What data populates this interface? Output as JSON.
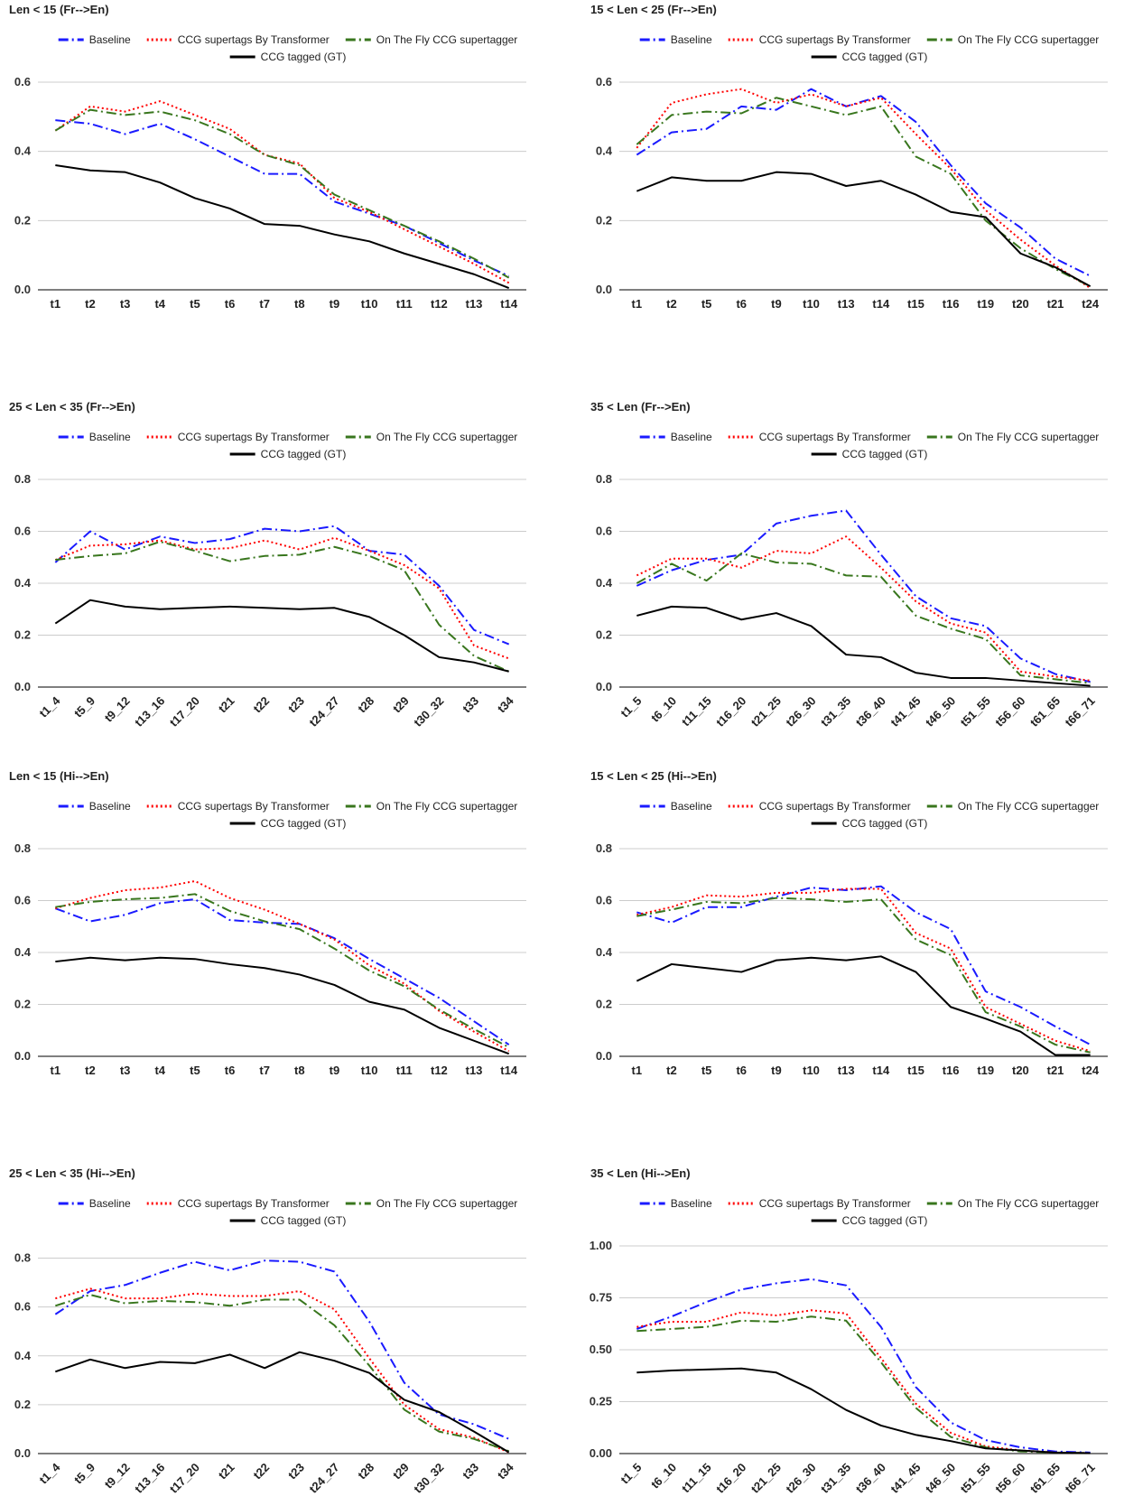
{
  "chart_data": [
    {
      "type": "line",
      "title": "Len < 15 (Fr-->En)",
      "categories": [
        "t1",
        "t2",
        "t3",
        "t4",
        "t5",
        "t6",
        "t7",
        "t8",
        "t9",
        "t10",
        "t11",
        "t12",
        "t13",
        "t14"
      ],
      "ylim": [
        0,
        0.6
      ],
      "yticks": [
        {
          "value": 0,
          "label": "0.0"
        },
        0.2,
        0.4,
        0.6
      ],
      "grid": true,
      "series": [
        {
          "name": "Baseline",
          "color": "#1a1aff",
          "dash": "dashdot",
          "values": [
            0.49,
            0.48,
            0.45,
            0.48,
            0.435,
            0.385,
            0.335,
            0.335,
            0.255,
            0.22,
            0.185,
            0.135,
            0.085,
            0.04
          ]
        },
        {
          "name": "CCG supertags By Transformer",
          "color": "#ff0000",
          "dash": "dotted",
          "values": [
            0.46,
            0.53,
            0.515,
            0.545,
            0.505,
            0.465,
            0.39,
            0.365,
            0.265,
            0.225,
            0.175,
            0.125,
            0.075,
            0.02
          ]
        },
        {
          "name": "On The Fly CCG supertagger",
          "color": "#38761d",
          "dash": "dashdot",
          "values": [
            0.46,
            0.52,
            0.505,
            0.515,
            0.49,
            0.45,
            0.39,
            0.36,
            0.275,
            0.23,
            0.185,
            0.14,
            0.09,
            0.035
          ]
        },
        {
          "name": "CCG tagged (GT)",
          "color": "#000000",
          "dash": "solid",
          "values": [
            0.36,
            0.345,
            0.34,
            0.31,
            0.265,
            0.235,
            0.19,
            0.185,
            0.16,
            0.14,
            0.105,
            0.075,
            0.045,
            0.005
          ]
        }
      ]
    },
    {
      "type": "line",
      "title": "15 < Len < 25 (Fr-->En)",
      "categories": [
        "t1",
        "t2",
        "t5",
        "t6",
        "t9",
        "t10",
        "t13",
        "t14",
        "t15",
        "t16",
        "t19",
        "t20",
        "t21",
        "t24"
      ],
      "ylim": [
        0,
        0.6
      ],
      "yticks": [
        {
          "value": 0,
          "label": "0.0"
        },
        0.2,
        0.4,
        0.6
      ],
      "grid": true,
      "series": [
        {
          "name": "Baseline",
          "color": "#1a1aff",
          "dash": "dashdot",
          "values": [
            0.39,
            0.455,
            0.465,
            0.53,
            0.52,
            0.58,
            0.53,
            0.56,
            0.485,
            0.36,
            0.25,
            0.18,
            0.09,
            0.04
          ]
        },
        {
          "name": "CCG supertags By Transformer",
          "color": "#ff0000",
          "dash": "dotted",
          "values": [
            0.41,
            0.54,
            0.565,
            0.58,
            0.54,
            0.565,
            0.53,
            0.555,
            0.45,
            0.35,
            0.23,
            0.145,
            0.07,
            0.005
          ]
        },
        {
          "name": "On The Fly CCG supertagger",
          "color": "#38761d",
          "dash": "dashdot",
          "values": [
            0.42,
            0.505,
            0.515,
            0.51,
            0.555,
            0.53,
            0.505,
            0.53,
            0.385,
            0.335,
            0.2,
            0.12,
            0.06,
            0.01
          ]
        },
        {
          "name": "CCG tagged (GT)",
          "color": "#000000",
          "dash": "solid",
          "values": [
            0.285,
            0.325,
            0.315,
            0.315,
            0.34,
            0.335,
            0.3,
            0.315,
            0.275,
            0.225,
            0.21,
            0.105,
            0.065,
            0.01
          ]
        }
      ]
    },
    {
      "type": "line",
      "title": "25 < Len < 35 (Fr-->En)",
      "categories": [
        "t1_4",
        "t5_9",
        "t9_12",
        "t13_16",
        "t17_20",
        "t21",
        "t22",
        "t23",
        "t24_27",
        "t28",
        "t29",
        "t30_32",
        "t33",
        "t34"
      ],
      "ylim": [
        0,
        0.8
      ],
      "yticks": [
        {
          "value": 0,
          "label": "0.0"
        },
        0.2,
        0.4,
        0.6,
        0.8
      ],
      "grid": true,
      "series": [
        {
          "name": "Baseline",
          "color": "#1a1aff",
          "dash": "dashdot",
          "values": [
            0.48,
            0.6,
            0.53,
            0.58,
            0.555,
            0.57,
            0.61,
            0.6,
            0.62,
            0.525,
            0.51,
            0.39,
            0.22,
            0.165
          ]
        },
        {
          "name": "CCG supertags By Transformer",
          "color": "#ff0000",
          "dash": "dotted",
          "values": [
            0.49,
            0.545,
            0.55,
            0.565,
            0.53,
            0.535,
            0.565,
            0.53,
            0.575,
            0.525,
            0.47,
            0.38,
            0.16,
            0.11
          ]
        },
        {
          "name": "On The Fly CCG supertagger",
          "color": "#38761d",
          "dash": "dashdot",
          "values": [
            0.49,
            0.505,
            0.515,
            0.56,
            0.525,
            0.485,
            0.505,
            0.51,
            0.54,
            0.505,
            0.45,
            0.24,
            0.12,
            0.06
          ]
        },
        {
          "name": "CCG tagged (GT)",
          "color": "#000000",
          "dash": "solid",
          "values": [
            0.245,
            0.335,
            0.31,
            0.3,
            0.305,
            0.31,
            0.305,
            0.3,
            0.305,
            0.27,
            0.2,
            0.115,
            0.095,
            0.06
          ]
        }
      ]
    },
    {
      "type": "line",
      "title": "35 < Len (Fr-->En)",
      "categories": [
        "t1_5",
        "t6_10",
        "t11_15",
        "t16_20",
        "t21_25",
        "t26_30",
        "t31_35",
        "t36_40",
        "t41_45",
        "t46_50",
        "t51_55",
        "t56_60",
        "t61_65",
        "t66_71"
      ],
      "ylim": [
        0,
        0.8
      ],
      "yticks": [
        {
          "value": 0,
          "label": "0.0"
        },
        0.2,
        0.4,
        0.6,
        0.8
      ],
      "grid": true,
      "series": [
        {
          "name": "Baseline",
          "color": "#1a1aff",
          "dash": "dashdot",
          "values": [
            0.39,
            0.45,
            0.49,
            0.51,
            0.63,
            0.66,
            0.68,
            0.51,
            0.35,
            0.265,
            0.235,
            0.11,
            0.05,
            0.02
          ]
        },
        {
          "name": "CCG supertags By Transformer",
          "color": "#ff0000",
          "dash": "dotted",
          "values": [
            0.43,
            0.495,
            0.495,
            0.46,
            0.525,
            0.515,
            0.58,
            0.46,
            0.33,
            0.245,
            0.21,
            0.06,
            0.04,
            0.025
          ]
        },
        {
          "name": "On The Fly CCG supertagger",
          "color": "#38761d",
          "dash": "dashdot",
          "values": [
            0.4,
            0.475,
            0.41,
            0.515,
            0.48,
            0.475,
            0.43,
            0.425,
            0.275,
            0.225,
            0.185,
            0.045,
            0.03,
            0.015
          ]
        },
        {
          "name": "CCG tagged (GT)",
          "color": "#000000",
          "dash": "solid",
          "values": [
            0.275,
            0.31,
            0.305,
            0.26,
            0.285,
            0.235,
            0.125,
            0.115,
            0.055,
            0.035,
            0.035,
            0.025,
            0.015,
            0.005
          ]
        }
      ]
    },
    {
      "type": "line",
      "title": "Len < 15 (Hi-->En)",
      "categories": [
        "t1",
        "t2",
        "t3",
        "t4",
        "t5",
        "t6",
        "t7",
        "t8",
        "t9",
        "t10",
        "t11",
        "t12",
        "t13",
        "t14"
      ],
      "ylim": [
        0,
        0.8
      ],
      "yticks": [
        {
          "value": 0,
          "label": "0.0"
        },
        0.2,
        0.4,
        0.6,
        0.8
      ],
      "grid": true,
      "series": [
        {
          "name": "Baseline",
          "color": "#1a1aff",
          "dash": "dashdot",
          "values": [
            0.57,
            0.52,
            0.545,
            0.59,
            0.605,
            0.525,
            0.515,
            0.51,
            0.455,
            0.375,
            0.3,
            0.225,
            0.135,
            0.045
          ]
        },
        {
          "name": "CCG supertags By Transformer",
          "color": "#ff0000",
          "dash": "dotted",
          "values": [
            0.57,
            0.61,
            0.64,
            0.65,
            0.675,
            0.61,
            0.565,
            0.51,
            0.45,
            0.35,
            0.28,
            0.175,
            0.095,
            0.02
          ]
        },
        {
          "name": "On The Fly CCG supertagger",
          "color": "#38761d",
          "dash": "dashdot",
          "values": [
            0.575,
            0.595,
            0.605,
            0.61,
            0.625,
            0.56,
            0.52,
            0.49,
            0.415,
            0.33,
            0.27,
            0.18,
            0.105,
            0.035
          ]
        },
        {
          "name": "CCG tagged (GT)",
          "color": "#000000",
          "dash": "solid",
          "values": [
            0.365,
            0.38,
            0.37,
            0.38,
            0.375,
            0.355,
            0.34,
            0.315,
            0.275,
            0.21,
            0.18,
            0.11,
            0.06,
            0.01
          ]
        }
      ]
    },
    {
      "type": "line",
      "title": "15 < Len < 25 (Hi-->En)",
      "categories": [
        "t1",
        "t2",
        "t5",
        "t6",
        "t9",
        "t10",
        "t13",
        "t14",
        "t15",
        "t16",
        "t19",
        "t20",
        "t21",
        "t24"
      ],
      "ylim": [
        0,
        0.8
      ],
      "yticks": [
        {
          "value": 0,
          "label": "0.0"
        },
        0.2,
        0.4,
        0.6,
        0.8
      ],
      "grid": true,
      "series": [
        {
          "name": "Baseline",
          "color": "#1a1aff",
          "dash": "dashdot",
          "values": [
            0.555,
            0.515,
            0.575,
            0.575,
            0.615,
            0.65,
            0.64,
            0.655,
            0.555,
            0.49,
            0.25,
            0.19,
            0.115,
            0.045
          ]
        },
        {
          "name": "CCG supertags By Transformer",
          "color": "#ff0000",
          "dash": "dotted",
          "values": [
            0.545,
            0.575,
            0.62,
            0.615,
            0.63,
            0.63,
            0.645,
            0.645,
            0.475,
            0.415,
            0.19,
            0.125,
            0.06,
            0.02
          ]
        },
        {
          "name": "On The Fly CCG supertagger",
          "color": "#38761d",
          "dash": "dashdot",
          "values": [
            0.54,
            0.565,
            0.595,
            0.59,
            0.61,
            0.605,
            0.595,
            0.605,
            0.45,
            0.39,
            0.17,
            0.115,
            0.045,
            0.015
          ]
        },
        {
          "name": "CCG tagged (GT)",
          "color": "#000000",
          "dash": "solid",
          "values": [
            0.29,
            0.355,
            0.34,
            0.325,
            0.37,
            0.38,
            0.37,
            0.385,
            0.325,
            0.19,
            0.145,
            0.095,
            0.005,
            0.005
          ]
        }
      ]
    },
    {
      "type": "line",
      "title": "25 < Len < 35 (Hi-->En)",
      "categories": [
        "t1_4",
        "t5_9",
        "t9_12",
        "t13_16",
        "t17_20",
        "t21",
        "t22",
        "t23",
        "t24_27",
        "t28",
        "t29",
        "t30_32",
        "t33",
        "t34"
      ],
      "ylim": [
        0,
        0.85
      ],
      "yticks": [
        {
          "value": 0,
          "label": "0.0"
        },
        0.2,
        0.4,
        0.6,
        0.8
      ],
      "grid": true,
      "series": [
        {
          "name": "Baseline",
          "color": "#1a1aff",
          "dash": "dashdot",
          "values": [
            0.57,
            0.665,
            0.69,
            0.74,
            0.785,
            0.75,
            0.79,
            0.785,
            0.745,
            0.54,
            0.29,
            0.16,
            0.12,
            0.06
          ]
        },
        {
          "name": "CCG supertags By Transformer",
          "color": "#ff0000",
          "dash": "dotted",
          "values": [
            0.635,
            0.675,
            0.635,
            0.635,
            0.655,
            0.645,
            0.645,
            0.665,
            0.59,
            0.39,
            0.2,
            0.1,
            0.065,
            0.005
          ]
        },
        {
          "name": "On The Fly CCG supertagger",
          "color": "#38761d",
          "dash": "dashdot",
          "values": [
            0.605,
            0.65,
            0.615,
            0.625,
            0.62,
            0.605,
            0.63,
            0.63,
            0.525,
            0.36,
            0.18,
            0.09,
            0.06,
            0.01
          ]
        },
        {
          "name": "CCG tagged (GT)",
          "color": "#000000",
          "dash": "solid",
          "values": [
            0.335,
            0.385,
            0.35,
            0.375,
            0.37,
            0.405,
            0.35,
            0.415,
            0.38,
            0.33,
            0.22,
            0.17,
            0.09,
            0.005
          ]
        }
      ]
    },
    {
      "type": "line",
      "title": "35 < Len (Hi-->En)",
      "categories": [
        "t1_5",
        "t6_10",
        "t11_15",
        "t16_20",
        "t21_25",
        "t26_30",
        "t31_35",
        "t36_40",
        "t41_45",
        "t46_50",
        "t51_55",
        "t56_60",
        "t61_65",
        "t66_71"
      ],
      "ylim": [
        0,
        1
      ],
      "yticks": [
        {
          "value": 0,
          "label": "0.00"
        },
        0.25,
        {
          "value": 0.5,
          "label": "0.50"
        },
        0.75,
        {
          "value": 1,
          "label": "1.00"
        }
      ],
      "grid": true,
      "series": [
        {
          "name": "Baseline",
          "color": "#1a1aff",
          "dash": "dashdot",
          "values": [
            0.6,
            0.66,
            0.73,
            0.79,
            0.82,
            0.84,
            0.81,
            0.61,
            0.32,
            0.15,
            0.065,
            0.03,
            0.01,
            0.005
          ]
        },
        {
          "name": "CCG supertags By Transformer",
          "color": "#ff0000",
          "dash": "dotted",
          "values": [
            0.61,
            0.635,
            0.635,
            0.68,
            0.665,
            0.69,
            0.675,
            0.46,
            0.24,
            0.1,
            0.035,
            0.015,
            0.005,
            0.002
          ]
        },
        {
          "name": "On The Fly CCG supertagger",
          "color": "#38761d",
          "dash": "dashdot",
          "values": [
            0.59,
            0.6,
            0.61,
            0.64,
            0.635,
            0.66,
            0.64,
            0.44,
            0.22,
            0.08,
            0.03,
            0.01,
            0.005,
            0.002
          ]
        },
        {
          "name": "CCG tagged (GT)",
          "color": "#000000",
          "dash": "solid",
          "values": [
            0.39,
            0.4,
            0.405,
            0.41,
            0.39,
            0.31,
            0.21,
            0.135,
            0.09,
            0.06,
            0.025,
            0.015,
            0.005,
            0.002
          ]
        }
      ]
    }
  ]
}
